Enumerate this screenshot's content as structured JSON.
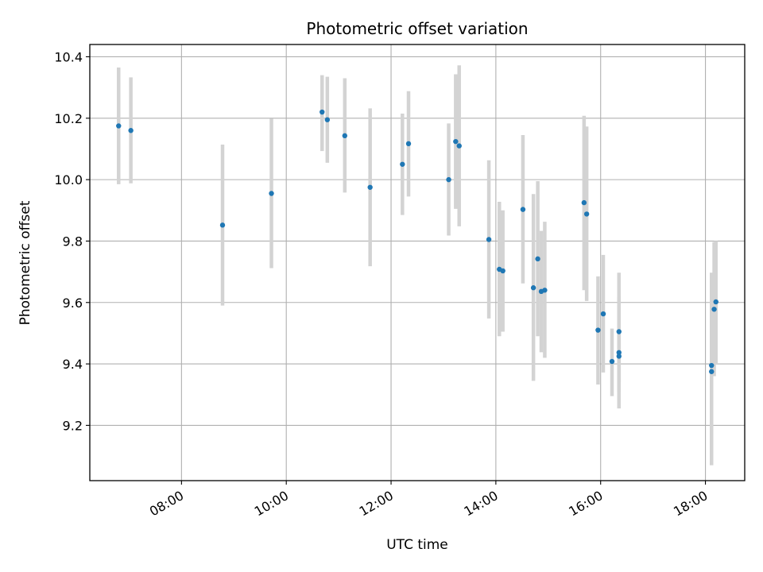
{
  "chart_data": {
    "type": "scatter",
    "title": "Photometric offset variation",
    "xlabel": "UTC time",
    "ylabel": "Photometric offset",
    "x_ticks": [
      "08:00",
      "10:00",
      "12:00",
      "14:00",
      "16:00",
      "18:00"
    ],
    "y_ticks": [
      "9.2",
      "9.4",
      "9.6",
      "9.8",
      "10.0",
      "10.2",
      "10.4"
    ],
    "xlim": [
      "06:15",
      "18:45"
    ],
    "ylim": [
      9.02,
      10.44
    ],
    "grid": true,
    "errorbar_color": "#d3d3d3",
    "point_color": "#1f77b4",
    "points": [
      {
        "t": "06:48",
        "y": 10.175,
        "lo": 9.985,
        "hi": 10.365
      },
      {
        "t": "07:02",
        "y": 10.16,
        "lo": 9.988,
        "hi": 10.333
      },
      {
        "t": "08:47",
        "y": 9.852,
        "lo": 9.59,
        "hi": 10.114
      },
      {
        "t": "09:43",
        "y": 9.955,
        "lo": 9.712,
        "hi": 10.198
      },
      {
        "t": "10:41",
        "y": 10.22,
        "lo": 10.093,
        "hi": 10.34
      },
      {
        "t": "10:47",
        "y": 10.195,
        "lo": 10.055,
        "hi": 10.335
      },
      {
        "t": "11:07",
        "y": 10.143,
        "lo": 9.958,
        "hi": 10.33
      },
      {
        "t": "11:36",
        "y": 9.975,
        "lo": 9.718,
        "hi": 10.232
      },
      {
        "t": "12:13",
        "y": 10.05,
        "lo": 9.885,
        "hi": 10.215
      },
      {
        "t": "12:20",
        "y": 10.117,
        "lo": 9.945,
        "hi": 10.288
      },
      {
        "t": "13:06",
        "y": 10.0,
        "lo": 9.818,
        "hi": 10.183
      },
      {
        "t": "13:14",
        "y": 10.124,
        "lo": 9.905,
        "hi": 10.343
      },
      {
        "t": "13:18",
        "y": 10.11,
        "lo": 9.848,
        "hi": 10.372
      },
      {
        "t": "13:52",
        "y": 9.805,
        "lo": 9.548,
        "hi": 10.063
      },
      {
        "t": "14:04",
        "y": 9.708,
        "lo": 9.49,
        "hi": 9.928
      },
      {
        "t": "14:08",
        "y": 9.703,
        "lo": 9.505,
        "hi": 9.9
      },
      {
        "t": "14:31",
        "y": 9.903,
        "lo": 9.662,
        "hi": 10.145
      },
      {
        "t": "14:43",
        "y": 9.648,
        "lo": 9.345,
        "hi": 9.953
      },
      {
        "t": "14:48",
        "y": 9.742,
        "lo": 9.49,
        "hi": 9.995
      },
      {
        "t": "14:52",
        "y": 9.636,
        "lo": 9.438,
        "hi": 9.833
      },
      {
        "t": "14:56",
        "y": 9.64,
        "lo": 9.42,
        "hi": 9.863
      },
      {
        "t": "15:41",
        "y": 9.925,
        "lo": 9.64,
        "hi": 10.208
      },
      {
        "t": "15:44",
        "y": 9.888,
        "lo": 9.605,
        "hi": 10.173
      },
      {
        "t": "15:57",
        "y": 9.51,
        "lo": 9.333,
        "hi": 9.685
      },
      {
        "t": "16:03",
        "y": 9.563,
        "lo": 9.372,
        "hi": 9.755
      },
      {
        "t": "16:13",
        "y": 9.408,
        "lo": 9.295,
        "hi": 9.515
      },
      {
        "t": "16:21",
        "y": 9.505,
        "lo": 9.31,
        "hi": 9.697
      },
      {
        "t": "16:21",
        "y": 9.437,
        "lo": 9.255,
        "hi": 9.618
      },
      {
        "t": "16:21",
        "y": 9.425,
        "lo": 9.34,
        "hi": 9.51
      },
      {
        "t": "18:07",
        "y": 9.395,
        "lo": 9.07,
        "hi": 9.697
      },
      {
        "t": "18:07",
        "y": 9.375,
        "lo": 9.18,
        "hi": 9.57
      },
      {
        "t": "18:10",
        "y": 9.578,
        "lo": 9.36,
        "hi": 9.797
      },
      {
        "t": "18:12",
        "y": 9.602,
        "lo": 9.4,
        "hi": 9.8
      }
    ]
  }
}
